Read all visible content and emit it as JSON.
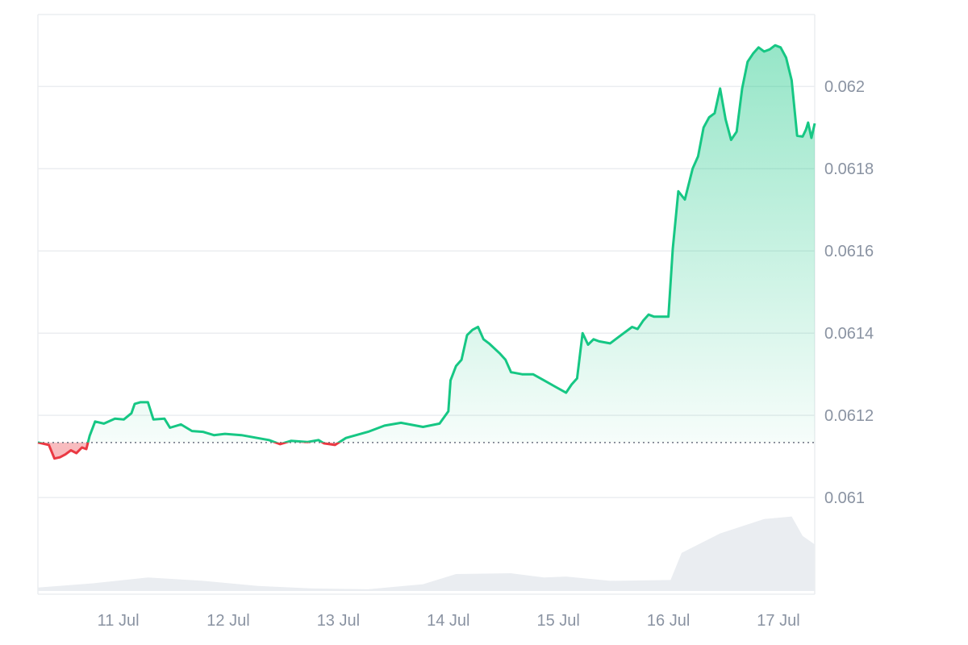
{
  "chart_data": {
    "type": "area",
    "baseline": 0.061134,
    "colors": {
      "up": "#16c784",
      "down": "#ea3943",
      "grid": "#ebedf0",
      "volume": "#eaedf1",
      "axis_text": "#8a93a2",
      "baseline": "#6b7280"
    },
    "y_axis": {
      "range": [
        0.060765,
        0.062175
      ],
      "ticks": [
        "0.061",
        "0.0612",
        "0.0614",
        "0.0616",
        "0.0618",
        "0.062"
      ]
    },
    "x_axis": {
      "range": [
        0,
        7.06
      ],
      "ticks": [
        {
          "label": "11 Jul",
          "value": 0.73
        },
        {
          "label": "12 Jul",
          "value": 1.73
        },
        {
          "label": "13 Jul",
          "value": 2.73
        },
        {
          "label": "14 Jul",
          "value": 3.73
        },
        {
          "label": "15 Jul",
          "value": 4.73
        },
        {
          "label": "16 Jul",
          "value": 5.73
        },
        {
          "label": "17 Jul",
          "value": 6.73
        }
      ]
    },
    "price_series": [
      [
        0.0,
        0.061134
      ],
      [
        0.1,
        0.061128
      ],
      [
        0.15,
        0.061095
      ],
      [
        0.2,
        0.061098
      ],
      [
        0.25,
        0.061105
      ],
      [
        0.3,
        0.061115
      ],
      [
        0.35,
        0.061108
      ],
      [
        0.4,
        0.061122
      ],
      [
        0.44,
        0.061118
      ],
      [
        0.47,
        0.06115
      ],
      [
        0.52,
        0.061185
      ],
      [
        0.6,
        0.06118
      ],
      [
        0.7,
        0.061192
      ],
      [
        0.78,
        0.06119
      ],
      [
        0.85,
        0.061205
      ],
      [
        0.88,
        0.061228
      ],
      [
        0.93,
        0.061232
      ],
      [
        1.0,
        0.061232
      ],
      [
        1.05,
        0.06119
      ],
      [
        1.15,
        0.061192
      ],
      [
        1.2,
        0.06117
      ],
      [
        1.3,
        0.061178
      ],
      [
        1.4,
        0.061162
      ],
      [
        1.5,
        0.06116
      ],
      [
        1.6,
        0.061152
      ],
      [
        1.7,
        0.061155
      ],
      [
        1.85,
        0.061152
      ],
      [
        2.1,
        0.06114
      ],
      [
        2.2,
        0.06113
      ],
      [
        2.3,
        0.061138
      ],
      [
        2.45,
        0.061135
      ],
      [
        2.55,
        0.06114
      ],
      [
        2.6,
        0.061132
      ],
      [
        2.7,
        0.061128
      ],
      [
        2.8,
        0.061145
      ],
      [
        3.0,
        0.06116
      ],
      [
        3.15,
        0.061175
      ],
      [
        3.3,
        0.061182
      ],
      [
        3.5,
        0.061172
      ],
      [
        3.65,
        0.06118
      ],
      [
        3.73,
        0.06121
      ],
      [
        3.75,
        0.061285
      ],
      [
        3.8,
        0.06132
      ],
      [
        3.85,
        0.061335
      ],
      [
        3.9,
        0.061395
      ],
      [
        3.95,
        0.061408
      ],
      [
        4.0,
        0.061415
      ],
      [
        4.05,
        0.061385
      ],
      [
        4.1,
        0.061375
      ],
      [
        4.2,
        0.06135
      ],
      [
        4.25,
        0.061335
      ],
      [
        4.3,
        0.061305
      ],
      [
        4.4,
        0.0613
      ],
      [
        4.5,
        0.0613
      ],
      [
        4.6,
        0.061285
      ],
      [
        4.7,
        0.06127
      ],
      [
        4.8,
        0.061255
      ],
      [
        4.85,
        0.061275
      ],
      [
        4.9,
        0.06129
      ],
      [
        4.95,
        0.0614
      ],
      [
        5.0,
        0.061372
      ],
      [
        5.05,
        0.061385
      ],
      [
        5.1,
        0.06138
      ],
      [
        5.2,
        0.061375
      ],
      [
        5.3,
        0.061395
      ],
      [
        5.4,
        0.061415
      ],
      [
        5.45,
        0.06141
      ],
      [
        5.5,
        0.06143
      ],
      [
        5.55,
        0.061445
      ],
      [
        5.6,
        0.06144
      ],
      [
        5.73,
        0.06144
      ],
      [
        5.77,
        0.061605
      ],
      [
        5.82,
        0.061745
      ],
      [
        5.88,
        0.061725
      ],
      [
        5.95,
        0.0618
      ],
      [
        6.0,
        0.06183
      ],
      [
        6.05,
        0.0619
      ],
      [
        6.1,
        0.061925
      ],
      [
        6.15,
        0.061935
      ],
      [
        6.2,
        0.061995
      ],
      [
        6.25,
        0.06192
      ],
      [
        6.3,
        0.06187
      ],
      [
        6.35,
        0.06189
      ],
      [
        6.4,
        0.061995
      ],
      [
        6.45,
        0.06206
      ],
      [
        6.5,
        0.06208
      ],
      [
        6.55,
        0.062095
      ],
      [
        6.6,
        0.062085
      ],
      [
        6.65,
        0.06209
      ],
      [
        6.7,
        0.0621
      ],
      [
        6.75,
        0.062095
      ],
      [
        6.8,
        0.06207
      ],
      [
        6.85,
        0.062015
      ],
      [
        6.9,
        0.06188
      ],
      [
        6.95,
        0.061878
      ],
      [
        6.98,
        0.061895
      ],
      [
        7.0,
        0.061912
      ],
      [
        7.03,
        0.061875
      ],
      [
        7.06,
        0.06191
      ]
    ],
    "volume_series": [
      [
        0.0,
        0.04
      ],
      [
        0.5,
        0.09
      ],
      [
        1.0,
        0.16
      ],
      [
        1.5,
        0.12
      ],
      [
        2.0,
        0.06
      ],
      [
        2.5,
        0.03
      ],
      [
        3.0,
        0.02
      ],
      [
        3.5,
        0.08
      ],
      [
        3.8,
        0.2
      ],
      [
        4.3,
        0.21
      ],
      [
        4.6,
        0.16
      ],
      [
        4.8,
        0.17
      ],
      [
        5.2,
        0.12
      ],
      [
        5.75,
        0.13
      ],
      [
        5.85,
        0.45
      ],
      [
        6.2,
        0.68
      ],
      [
        6.6,
        0.85
      ],
      [
        6.85,
        0.88
      ],
      [
        6.95,
        0.65
      ],
      [
        7.06,
        0.55
      ]
    ]
  }
}
